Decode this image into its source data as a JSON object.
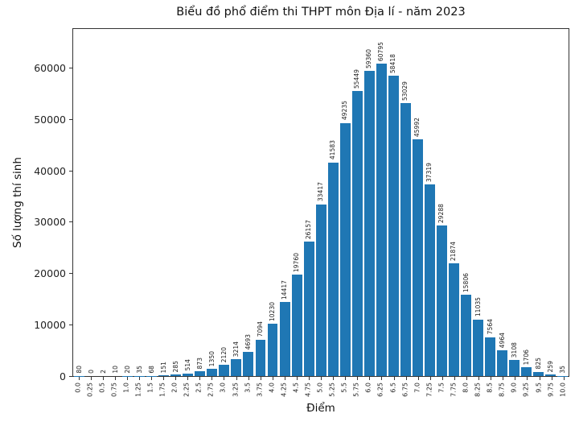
{
  "chart_data": {
    "type": "bar",
    "title": "Biểu đồ phổ điểm thi THPT môn Địa lí - năm 2023",
    "xlabel": "Điểm",
    "ylabel": "Số lượng thí sinh",
    "categories": [
      "0.0",
      "0.25",
      "0.5",
      "0.75",
      "1.0",
      "1.25",
      "1.5",
      "1.75",
      "2.0",
      "2.25",
      "2.5",
      "2.75",
      "3.0",
      "3.25",
      "3.5",
      "3.75",
      "4.0",
      "4.25",
      "4.5",
      "4.75",
      "5.0",
      "5.25",
      "5.5",
      "5.75",
      "6.0",
      "6.25",
      "6.5",
      "6.75",
      "7.0",
      "7.25",
      "7.5",
      "7.75",
      "8.0",
      "8.25",
      "8.5",
      "8.75",
      "9.0",
      "9.25",
      "9.5",
      "9.75",
      "10.0"
    ],
    "values": [
      80,
      0,
      2,
      10,
      20,
      35,
      68,
      151,
      285,
      514,
      873,
      1350,
      2120,
      3214,
      4693,
      7094,
      10230,
      14417,
      19760,
      26157,
      33417,
      41583,
      49235,
      55449,
      59360,
      60795,
      58418,
      53029,
      45992,
      37319,
      29288,
      21874,
      15806,
      11035,
      7564,
      4964,
      3108,
      1706,
      825,
      259,
      35
    ],
    "yticks": [
      0,
      10000,
      20000,
      30000,
      40000,
      50000,
      60000
    ],
    "ylim": [
      0,
      67500
    ],
    "grid": false,
    "legend": null,
    "bar_color": "#1f77b4",
    "value_labels_rotation": 90,
    "xtick_rotation": 90
  }
}
